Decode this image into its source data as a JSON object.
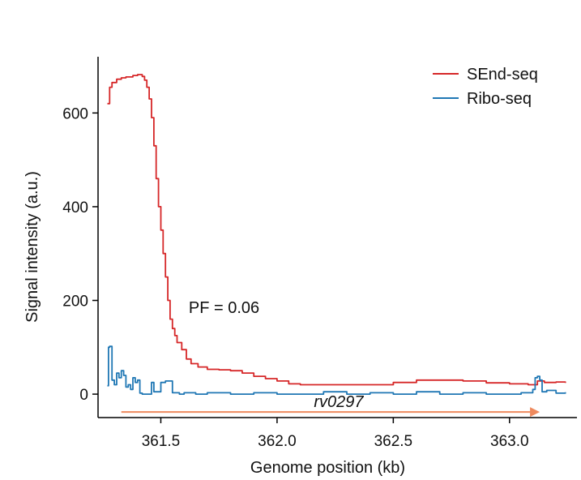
{
  "chart_data": {
    "type": "line",
    "xlabel": "Genome position (kb)",
    "ylabel": "Signal intensity (a.u.)",
    "xlim": [
      361.23,
      363.29
    ],
    "ylim": [
      -50,
      720
    ],
    "x_ticks": [
      361.5,
      362.0,
      362.5,
      363.0
    ],
    "x_tick_labels": [
      "361.5",
      "362.0",
      "362.5",
      "363.0"
    ],
    "y_ticks": [
      0,
      200,
      400,
      600
    ],
    "y_tick_labels": [
      "0",
      "200",
      "400",
      "600"
    ],
    "grid": false,
    "legend_position": "top-right",
    "series": [
      {
        "name": "SEnd-seq",
        "color": "#d62728",
        "x": [
          361.27,
          361.28,
          361.29,
          361.31,
          361.33,
          361.35,
          361.38,
          361.4,
          361.42,
          361.43,
          361.44,
          361.45,
          361.46,
          361.47,
          361.48,
          361.49,
          361.5,
          361.51,
          361.52,
          361.53,
          361.54,
          361.55,
          361.56,
          361.57,
          361.59,
          361.61,
          361.63,
          361.66,
          361.7,
          361.75,
          361.8,
          361.85,
          361.9,
          361.95,
          362.0,
          362.05,
          362.1,
          362.2,
          362.3,
          362.4,
          362.5,
          362.6,
          362.7,
          362.8,
          362.9,
          363.0,
          363.08,
          363.1,
          363.12,
          363.15,
          363.2,
          363.24
        ],
        "y": [
          620,
          655,
          665,
          672,
          675,
          677,
          680,
          682,
          678,
          670,
          655,
          630,
          590,
          530,
          460,
          400,
          350,
          300,
          250,
          200,
          160,
          140,
          125,
          110,
          95,
          75,
          65,
          58,
          53,
          52,
          50,
          45,
          38,
          33,
          28,
          22,
          20,
          20,
          20,
          20,
          25,
          30,
          30,
          28,
          24,
          22,
          20,
          20,
          28,
          25,
          26,
          24
        ]
      },
      {
        "name": "Ribo-seq",
        "color": "#1f77b4",
        "x": [
          361.27,
          361.275,
          361.28,
          361.29,
          361.3,
          361.31,
          361.32,
          361.33,
          361.34,
          361.35,
          361.36,
          361.37,
          361.38,
          361.39,
          361.4,
          361.41,
          361.42,
          361.43,
          361.44,
          361.45,
          361.46,
          361.47,
          361.48,
          361.5,
          361.52,
          361.55,
          361.58,
          361.6,
          361.65,
          361.7,
          361.8,
          361.9,
          362.0,
          362.1,
          362.2,
          362.3,
          362.4,
          362.5,
          362.6,
          362.7,
          362.8,
          362.9,
          363.0,
          363.05,
          363.1,
          363.11,
          363.12,
          363.13,
          363.14,
          363.16,
          363.2,
          363.24
        ],
        "y": [
          18,
          100,
          102,
          30,
          20,
          45,
          35,
          50,
          40,
          15,
          20,
          10,
          35,
          25,
          30,
          2,
          0,
          0,
          0,
          0,
          25,
          5,
          5,
          25,
          28,
          3,
          0,
          3,
          0,
          3,
          0,
          3,
          0,
          0,
          5,
          0,
          3,
          0,
          5,
          0,
          3,
          0,
          0,
          3,
          10,
          35,
          38,
          30,
          5,
          8,
          2,
          4
        ]
      }
    ],
    "annotations": [
      {
        "text": "PF = 0.06",
        "x": 361.62,
        "y": 185
      }
    ],
    "gene_arrow": {
      "label": "rv0297",
      "x_start": 361.33,
      "x_end": 363.13,
      "color": "#ee8a5e"
    }
  }
}
